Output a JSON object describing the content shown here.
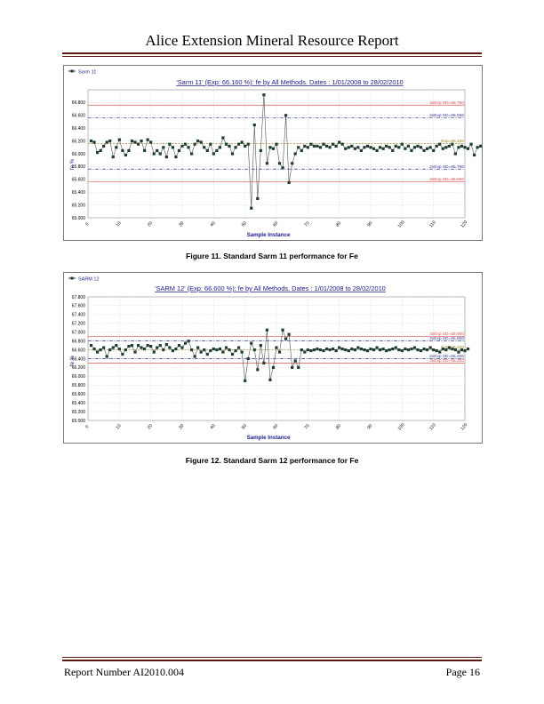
{
  "header": {
    "title": "Alice Extension Mineral Resource Report"
  },
  "footer": {
    "report_number": "Report Number AI2010.004",
    "page": "Page 16"
  },
  "captions": {
    "fig11": "Figure 11. Standard Sarm 11 performance for Fe",
    "fig12": "Figure 12. Standard Sarm 12 performance for Fe"
  },
  "colors": {
    "rule": "#5b1a12",
    "sd3": "#d9534f",
    "sd2": "#3b3b9a",
    "exp": "#a08c2a",
    "series": "#1f3d32",
    "title": "#1a1a8c"
  },
  "chart_data": [
    {
      "type": "line",
      "legend": "Sarm 11",
      "title": "'Sarm 11' (Exp: 66.160 %): fe by All Methods. Dates : 1/01/2008 to 28/02/2010",
      "xlabel": "Sample Instance",
      "ylabel": "fe %",
      "xlim": [
        0,
        120
      ],
      "ylim": [
        65.0,
        67.0
      ],
      "yticks": [
        "65.000",
        "65.200",
        "65.400",
        "65.600",
        "65.800",
        "66.000",
        "66.200",
        "66.400",
        "66.600",
        "66.800"
      ],
      "xticks": [
        "0",
        "10",
        "20",
        "30",
        "40",
        "50",
        "60",
        "70",
        "80",
        "90",
        "100",
        "110",
        "120"
      ],
      "reference_lines": [
        {
          "label": "3xExp SD=66.760",
          "value": 66.76,
          "kind": "sd3"
        },
        {
          "label": "2xExp SD=66.560",
          "value": 66.56,
          "kind": "sd2"
        },
        {
          "label": "Exp=66.160",
          "value": 66.16,
          "kind": "exp"
        },
        {
          "label": "2xExp SD=65.760",
          "value": 65.76,
          "kind": "sd2"
        },
        {
          "label": "3xExp SD=65.560",
          "value": 65.56,
          "kind": "sd3"
        }
      ],
      "values": [
        66.2,
        66.18,
        66.02,
        66.05,
        66.12,
        66.18,
        66.2,
        65.95,
        66.1,
        66.22,
        66.05,
        65.98,
        66.05,
        66.2,
        66.18,
        66.15,
        66.2,
        66.05,
        66.22,
        66.18,
        66.0,
        66.05,
        66.0,
        66.1,
        65.95,
        66.15,
        66.1,
        65.95,
        66.05,
        66.12,
        66.15,
        66.1,
        66.0,
        66.15,
        66.2,
        66.18,
        66.1,
        66.05,
        66.15,
        66.0,
        66.05,
        66.1,
        66.25,
        66.15,
        66.12,
        66.0,
        66.1,
        66.15,
        66.18,
        66.12,
        66.15,
        65.15,
        66.45,
        65.3,
        66.05,
        66.92,
        65.85,
        66.1,
        66.08,
        66.15,
        65.85,
        65.78,
        66.6,
        65.55,
        65.85,
        66.0,
        66.1,
        66.05,
        66.12,
        66.1,
        66.15,
        66.12,
        66.12,
        66.1,
        66.15,
        66.12,
        66.1,
        66.15,
        66.12,
        66.18,
        66.15,
        66.08,
        66.1,
        66.12,
        66.08,
        66.1,
        66.05,
        66.1,
        66.12,
        66.1,
        66.08,
        66.05,
        66.1,
        66.08,
        66.12,
        66.1,
        66.05,
        66.12,
        66.1,
        66.15,
        66.08,
        66.12,
        66.05,
        66.1,
        66.12,
        66.1,
        66.05,
        66.08,
        66.1,
        66.05,
        66.12,
        66.15,
        66.08,
        66.1,
        66.12,
        66.15,
        66.0,
        66.1,
        66.12,
        66.1,
        66.08,
        66.15,
        65.98,
        66.1,
        66.12
      ]
    },
    {
      "type": "line",
      "legend": "SARM 12",
      "title": "'SARM 12' (Exp: 66.600 %): fe by All Methods. Dates : 1/01/2008 to 28/02/2010",
      "xlabel": "Sample Instance",
      "ylabel": "fe %",
      "xlim": [
        0,
        120
      ],
      "ylim": [
        65.0,
        67.8
      ],
      "yticks": [
        "65.000",
        "65.200",
        "65.400",
        "65.600",
        "65.800",
        "66.000",
        "66.200",
        "66.400",
        "66.600",
        "66.800",
        "67.000",
        "67.200",
        "67.400",
        "67.600",
        "67.800"
      ],
      "xticks": [
        "0",
        "10",
        "20",
        "30",
        "40",
        "50",
        "60",
        "70",
        "80",
        "90",
        "100",
        "110",
        "120"
      ],
      "reference_lines": [
        {
          "label": "3xExp SD=66.900",
          "value": 66.9,
          "kind": "sd3"
        },
        {
          "label": "2xExp SD=66.800",
          "value": 66.8,
          "kind": "sd2"
        },
        {
          "label": "Exp=66.600",
          "value": 66.6,
          "kind": "exp"
        },
        {
          "label": "2xExp SD=66.400",
          "value": 66.4,
          "kind": "sd2"
        },
        {
          "label": "3xExp SD=66.300",
          "value": 66.3,
          "kind": "sd3"
        }
      ],
      "values": [
        66.7,
        66.62,
        66.55,
        66.6,
        66.65,
        66.45,
        66.6,
        66.65,
        66.7,
        66.62,
        66.5,
        66.6,
        66.68,
        66.7,
        66.55,
        66.7,
        66.65,
        66.62,
        66.7,
        66.68,
        66.55,
        66.65,
        66.7,
        66.6,
        66.72,
        66.65,
        66.58,
        66.62,
        66.7,
        66.65,
        66.75,
        66.8,
        66.6,
        66.45,
        66.65,
        66.55,
        66.6,
        66.5,
        66.58,
        66.62,
        66.6,
        66.62,
        66.55,
        66.65,
        66.6,
        66.5,
        66.58,
        66.65,
        66.55,
        65.9,
        66.4,
        66.75,
        66.6,
        66.15,
        66.7,
        66.3,
        67.05,
        65.92,
        66.2,
        66.65,
        66.55,
        67.05,
        66.85,
        66.95,
        66.2,
        66.35,
        66.2,
        66.6,
        66.55,
        66.6,
        66.58,
        66.6,
        66.62,
        66.6,
        66.58,
        66.62,
        66.6,
        66.62,
        66.58,
        66.65,
        66.62,
        66.6,
        66.58,
        66.62,
        66.6,
        66.65,
        66.62,
        66.6,
        66.58,
        66.62,
        66.6,
        66.65,
        66.6,
        66.62,
        66.58,
        66.6,
        66.62,
        66.65,
        66.6,
        66.58,
        66.62,
        66.6,
        66.62,
        66.65,
        66.6,
        66.58,
        66.62,
        66.6,
        66.65,
        66.6,
        66.58,
        66.55,
        66.62,
        66.6,
        66.65,
        66.62,
        66.6,
        66.55,
        66.6,
        66.58,
        66.62
      ]
    }
  ]
}
